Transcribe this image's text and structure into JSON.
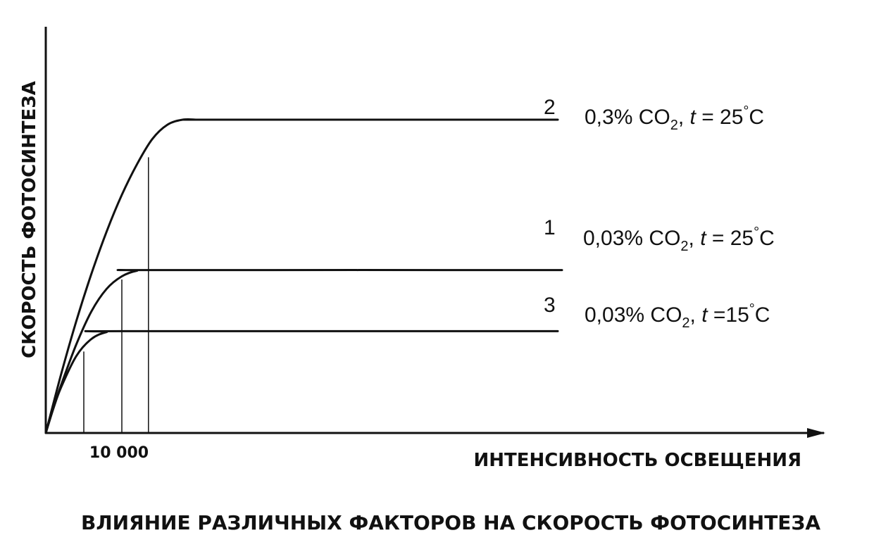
{
  "chart_data": {
    "type": "line",
    "title": "ВЛИЯНИЕ РАЗЛИЧНЫХ ФАКТОРОВ НА СКОРОСТЬ ФОТОСИНТЕЗА",
    "xlabel": "ИНТЕНСИВНОСТЬ ОСВЕЩЕНИЯ",
    "ylabel": "СКОРОСТЬ ФОТОСИНТЕЗА",
    "x_tick_labels": [
      {
        "value": 10000,
        "label": "10 000"
      }
    ],
    "xlim": [
      0,
      40000
    ],
    "ylim": [
      0,
      1
    ],
    "grid": false,
    "series": [
      {
        "name": "2",
        "condition": "0,3% CO₂, t = 25°C",
        "condition_parts": {
          "conc": "0,3% CO",
          "sub": "2",
          "sep": ", ",
          "t": "t",
          "eq": " = 25",
          "deg": "°",
          "unit": "C"
        },
        "x": [
          0,
          2000,
          4000,
          6000,
          8000,
          10000,
          12000,
          14000,
          16000,
          18000,
          20000,
          22000,
          32000
        ],
        "values": [
          0,
          0.186,
          0.356,
          0.508,
          0.643,
          0.76,
          0.858,
          0.938,
          0.984,
          1.0,
          1.0,
          1.0,
          1.0
        ],
        "saturation_x": 13500,
        "saturation_y": 0.88
      },
      {
        "name": "1",
        "condition": "0,03% CO₂, t = 25°C",
        "condition_parts": {
          "conc": "0,03% CO",
          "sub": "2",
          "sep": ", ",
          "t": "t",
          "eq": " = 25",
          "deg": "°",
          "unit": "C"
        },
        "x": [
          0,
          1000,
          2000,
          4000,
          6000,
          8000,
          10000,
          12000,
          14000,
          32000
        ],
        "values": [
          0,
          0.08,
          0.152,
          0.282,
          0.388,
          0.46,
          0.5,
          0.518,
          0.52,
          0.52
        ],
        "saturation_x": 10000,
        "saturation_y": 0.49
      },
      {
        "name": "3",
        "condition": "0,03% CO₂, t =15°C",
        "condition_parts": {
          "conc": "0,03% CO",
          "sub": "2",
          "sep": ", ",
          "t": "t",
          "eq": " =15",
          "deg": "°",
          "unit": "C"
        },
        "x": [
          0,
          1000,
          2000,
          4000,
          6000,
          8000,
          10000,
          32000
        ],
        "values": [
          0,
          0.078,
          0.145,
          0.245,
          0.3,
          0.322,
          0.325,
          0.325
        ],
        "saturation_x": 5000,
        "saturation_y": 0.26
      }
    ]
  },
  "colors": {
    "ink": "#111111",
    "background": "#ffffff"
  }
}
